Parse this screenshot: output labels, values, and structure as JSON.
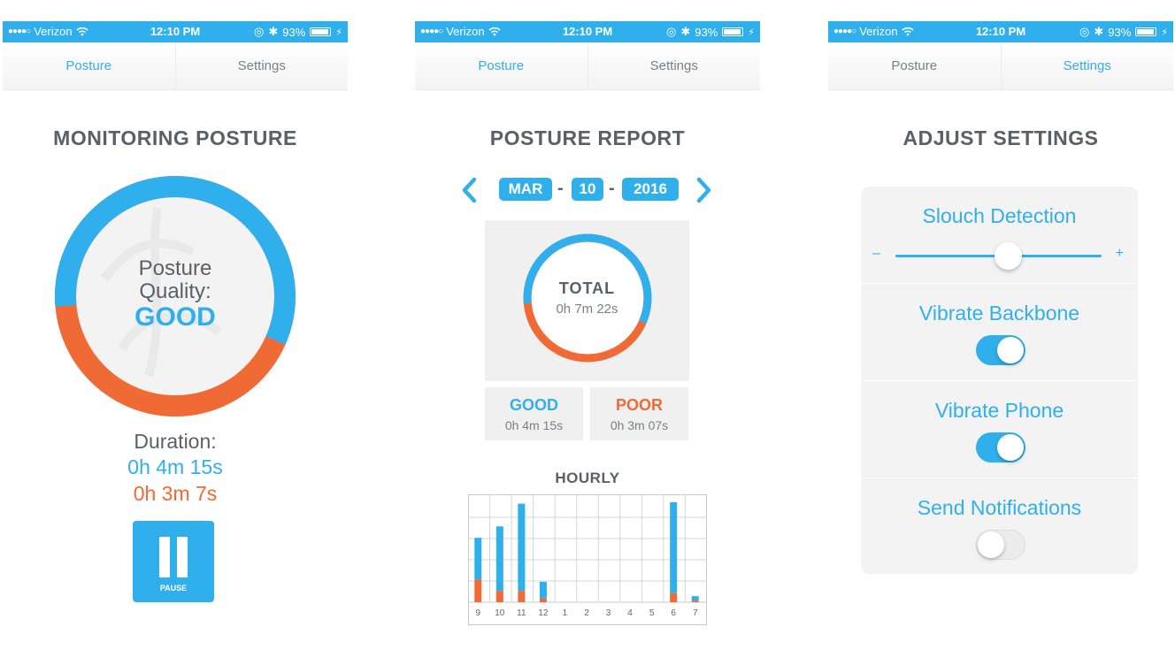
{
  "status_bar": {
    "carrier": "Verizon",
    "time": "12:10 PM",
    "battery": "93%"
  },
  "tabs": {
    "posture": "Posture",
    "settings": "Settings"
  },
  "colors": {
    "accent": "#2fb0ec",
    "good": "#2fb0ec",
    "poor": "#f06a35",
    "text": "#5a5f68"
  },
  "monitor": {
    "title": "MONITORING POSTURE",
    "quality_line1": "Posture",
    "quality_line2": "Quality:",
    "quality_value": "GOOD",
    "good_fraction": 0.58,
    "duration_label": "Duration:",
    "good_duration": "0h 4m 15s",
    "poor_duration": "0h 3m 7s",
    "pause_label": "PAUSE"
  },
  "report": {
    "title": "POSTURE REPORT",
    "month": "MAR",
    "day": "10",
    "year": "2016",
    "total_label": "TOTAL",
    "total_value": "0h 7m 22s",
    "good_fraction": 0.58,
    "good_label": "GOOD",
    "good_value": "0h 4m 15s",
    "poor_label": "POOR",
    "poor_value": "0h 3m 07s",
    "hourly_title": "HOURLY"
  },
  "settings": {
    "title": "ADJUST SETTINGS",
    "slouch_label": "Slouch Detection",
    "slider_minus": "–",
    "slider_plus": "+",
    "slider_level": 0.5,
    "vibrate_backbone_label": "Vibrate Backbone",
    "vibrate_backbone_on": true,
    "vibrate_phone_label": "Vibrate Phone",
    "vibrate_phone_on": true,
    "notifications_label": "Send Notifications",
    "notifications_on": false
  },
  "chart_data": {
    "type": "bar",
    "title": "HOURLY",
    "categories": [
      "9",
      "10",
      "11",
      "12",
      "1",
      "2",
      "3",
      "4",
      "5",
      "6",
      "7"
    ],
    "series": [
      {
        "values": [
          0.55,
          0.85,
          1.15,
          0.22,
          0,
          0,
          0,
          0,
          0,
          1.2,
          0.06
        ]
      },
      {
        "values": [
          0.3,
          0.15,
          0.15,
          0.05,
          0,
          0,
          0,
          0,
          0,
          0.12,
          0.02
        ]
      }
    ],
    "ylim": [
      0,
      1.4
    ],
    "grid": true,
    "stacked": true
  }
}
